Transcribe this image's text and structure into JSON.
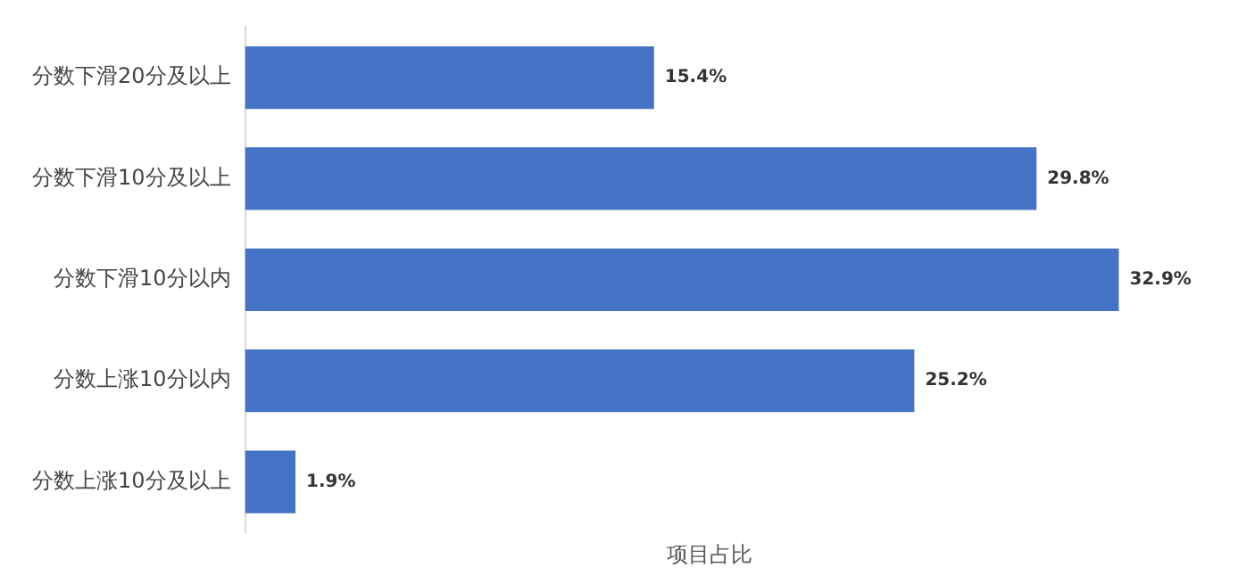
{
  "chart_data": {
    "type": "bar",
    "orientation": "horizontal",
    "xlabel": "项目占比",
    "categories": [
      "分数下滑20分及以上",
      "分数下滑10分及以上",
      "分数下滑10分以内",
      "分数上涨10分以内",
      "分数上涨10分及以上"
    ],
    "values": [
      15.4,
      29.8,
      32.9,
      25.2,
      1.9
    ],
    "color": "#4472c4",
    "value_labels": [
      "15.4%",
      "29.8%",
      "32.9%",
      "25.2%",
      "1.9%"
    ],
    "tick_labels": "y",
    "grid": false,
    "legend": false
  }
}
